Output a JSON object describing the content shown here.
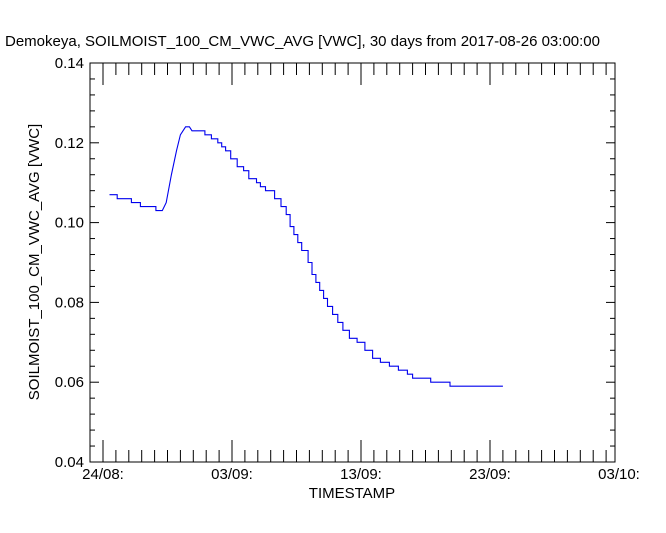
{
  "chart_data": {
    "type": "line",
    "title": "Demokeya, SOILMOIST_100_CM_VWC_AVG [VWC], 30 days from  2017-08-26 03:00:00",
    "xlabel": "TIMESTAMP",
    "ylabel": "SOILMOIST_100_CM_VWC_AVG [VWC]",
    "ylim": [
      0.04,
      0.14
    ],
    "yticks": [
      "0.04",
      "0.06",
      "0.08",
      "0.10",
      "0.12",
      "0.14"
    ],
    "xlim_days_from_aug24": [
      0,
      39
    ],
    "xticks": [
      {
        "label": "24/08:",
        "day": 0
      },
      {
        "label": "03/09:",
        "day": 10
      },
      {
        "label": "13/09:",
        "day": 20
      },
      {
        "label": "23/09:",
        "day": 30
      },
      {
        "label": "03/10:",
        "day": 40
      }
    ],
    "series": [
      {
        "name": "SOILMOIST_100_CM_VWC_AVG",
        "color": "#0000ee",
        "x_day": [
          0.5,
          1.1,
          1.1,
          2.2,
          2.2,
          2.9,
          2.9,
          3.1,
          3.1,
          3.4,
          3.4,
          4.1,
          4.1,
          4.6,
          4.6,
          4.9,
          5.3,
          5.7,
          6.0,
          6.4,
          6.7,
          6.9,
          7.4,
          7.4,
          7.9,
          7.9,
          8.4,
          8.4,
          8.9,
          8.9,
          9.2,
          9.2,
          9.5,
          9.5,
          9.9,
          9.9,
          10.4,
          10.4,
          10.9,
          10.9,
          11.3,
          11.3,
          11.9,
          11.9,
          12.2,
          12.2,
          12.6,
          12.6,
          13.3,
          13.3,
          13.8,
          13.8,
          14.2,
          14.2,
          14.5,
          14.5,
          14.8,
          14.8,
          15.1,
          15.1,
          15.4,
          15.4,
          15.9,
          15.9,
          16.2,
          16.2,
          16.5,
          16.5,
          16.8,
          16.8,
          17.1,
          17.1,
          17.4,
          17.4,
          17.8,
          17.8,
          18.2,
          18.2,
          18.6,
          18.6,
          19.1,
          19.1,
          19.7,
          19.7,
          20.3,
          20.3,
          20.9,
          20.9,
          21.5,
          21.5,
          22.2,
          22.2,
          22.9,
          22.9,
          23.6,
          23.6,
          24.0,
          24.0,
          24.6,
          24.6,
          25.4,
          25.4,
          26.0,
          26.0,
          26.4,
          26.4,
          26.9,
          26.9,
          27.5,
          27.5,
          31.0
        ],
        "y": [
          0.107,
          0.107,
          0.106,
          0.106,
          0.105,
          0.105,
          0.104,
          0.104,
          0.104,
          0.104,
          0.104,
          0.104,
          0.103,
          0.103,
          0.103,
          0.105,
          0.112,
          0.118,
          0.122,
          0.124,
          0.124,
          0.123,
          0.123,
          0.123,
          0.123,
          0.122,
          0.122,
          0.121,
          0.121,
          0.12,
          0.12,
          0.119,
          0.119,
          0.118,
          0.118,
          0.116,
          0.116,
          0.114,
          0.114,
          0.113,
          0.113,
          0.111,
          0.111,
          0.11,
          0.11,
          0.109,
          0.109,
          0.108,
          0.108,
          0.106,
          0.106,
          0.104,
          0.104,
          0.102,
          0.102,
          0.099,
          0.099,
          0.097,
          0.097,
          0.095,
          0.095,
          0.093,
          0.093,
          0.09,
          0.09,
          0.087,
          0.087,
          0.085,
          0.085,
          0.083,
          0.083,
          0.081,
          0.081,
          0.079,
          0.079,
          0.077,
          0.077,
          0.075,
          0.075,
          0.073,
          0.073,
          0.071,
          0.071,
          0.07,
          0.07,
          0.068,
          0.068,
          0.066,
          0.066,
          0.065,
          0.065,
          0.064,
          0.064,
          0.063,
          0.063,
          0.062,
          0.062,
          0.061,
          0.061,
          0.061,
          0.061,
          0.06,
          0.06,
          0.06,
          0.06,
          0.06,
          0.06,
          0.059,
          0.059,
          0.059,
          0.059
        ]
      }
    ]
  }
}
